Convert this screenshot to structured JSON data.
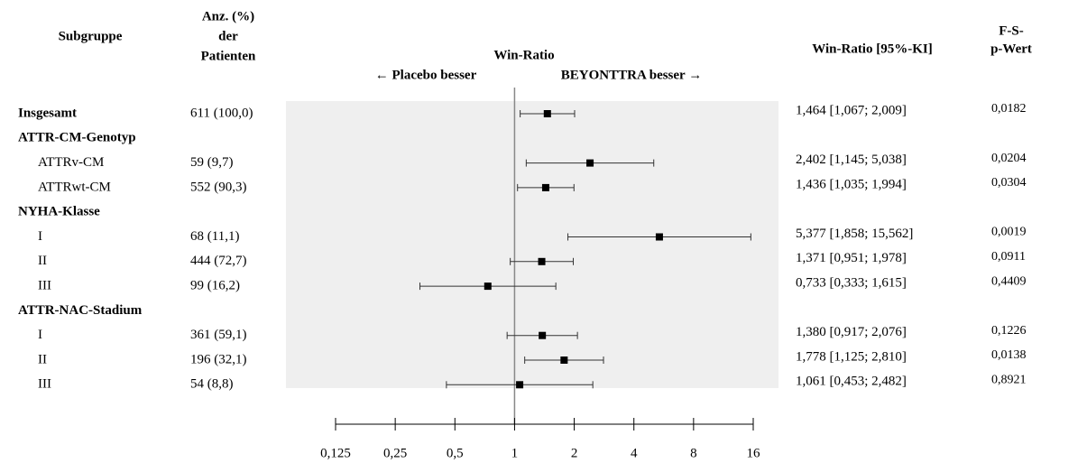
{
  "chart_data": {
    "type": "forest",
    "title": "Win-Ratio",
    "left_label": "← Placebo besser",
    "right_label": "BEYONTTRA besser →",
    "category_header": "Subgruppe",
    "n_header": [
      "Anz. (%)",
      "der",
      "Patienten"
    ],
    "ci_header": "Win-Ratio [95%-KI]",
    "p_header": [
      "F-S-",
      "p-Wert"
    ],
    "categories": [
      "Insgesamt",
      "ATTR-CM-Genotyp",
      "ATTRv-CM",
      "ATTRwt-CM",
      "NYHA-Klasse",
      "I",
      "II",
      "III",
      "ATTR-NAC-Stadium",
      "I",
      "II",
      "III"
    ],
    "n_labels": [
      "611 (100,0)",
      null,
      "59 (9,7)",
      "552 (90,3)",
      null,
      "68 (11,1)",
      "444 (72,7)",
      "99 (16,2)",
      null,
      "361 (59,1)",
      "196 (32,1)",
      "54 (8,8)"
    ],
    "values": [
      1.464,
      null,
      2.402,
      1.436,
      null,
      5.377,
      1.371,
      0.733,
      null,
      1.38,
      1.778,
      1.061
    ],
    "lower": [
      1.067,
      null,
      1.145,
      1.035,
      null,
      1.858,
      0.951,
      0.333,
      null,
      0.917,
      1.125,
      0.453
    ],
    "upper": [
      2.009,
      null,
      5.038,
      1.994,
      null,
      15.562,
      1.978,
      1.615,
      null,
      2.076,
      2.81,
      2.482
    ],
    "value_labels": [
      "1,464 [1,067; 2,009]",
      null,
      "2,402 [1,145; 5,038]",
      "1,436 [1,035; 1,994]",
      null,
      "5,377 [1,858; 15,562]",
      "1,371 [0,951; 1,978]",
      "0,733 [0,333; 1,615]",
      null,
      "1,380 [0,917; 2,076]",
      "1,778 [1,125; 2,810]",
      "1,061 [0,453; 2,482]"
    ],
    "p_labels": [
      "0,0182",
      null,
      "0,0204",
      "0,0304",
      null,
      "0,0019",
      "0,0911",
      "0,4409",
      null,
      "0,1226",
      "0,0138",
      "0,8921"
    ],
    "xlim": [
      0.125,
      16
    ],
    "xticks": [
      {
        "value": 0.125,
        "label": "0,125"
      },
      {
        "value": 0.25,
        "label": "0,25"
      },
      {
        "value": 0.5,
        "label": "0,5"
      },
      1,
      2,
      4,
      8,
      16
    ],
    "log_scale": true,
    "reference": 1,
    "color": "#000000"
  }
}
